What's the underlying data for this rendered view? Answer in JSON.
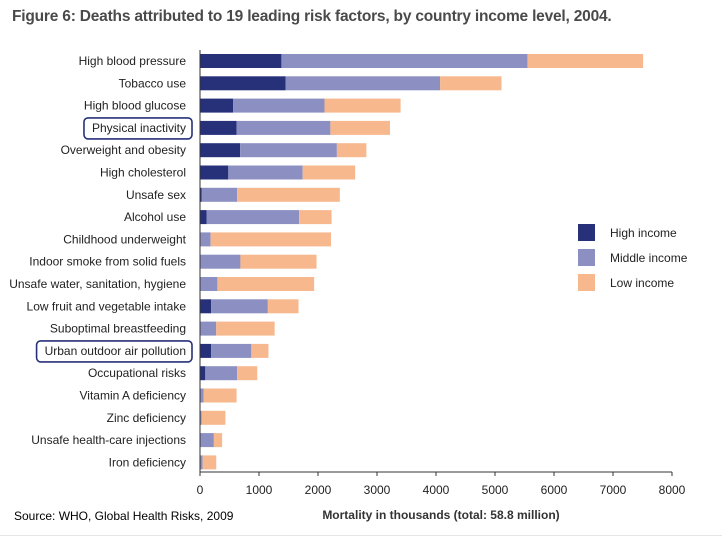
{
  "figure": {
    "title": "Figure 6: Deaths attributed to 19 leading risk factors, by country income level, 2004.",
    "source": "Source: WHO, Global Health Risks, 2009"
  },
  "colors": {
    "high_income": "#27317a",
    "middle_income": "#8c8fc2",
    "low_income": "#f7b88e",
    "highlight_box": "#27317a",
    "axis": "#333333",
    "text": "#222222"
  },
  "chart_data": {
    "type": "bar",
    "orientation": "horizontal",
    "stacked": true,
    "categories": [
      "High blood pressure",
      "Tobacco use",
      "High blood glucose",
      "Physical inactivity",
      "Overweight and obesity",
      "High cholesterol",
      "Unsafe sex",
      "Alcohol use",
      "Childhood underweight",
      "Indoor smoke from solid fuels",
      "Unsafe water, sanitation, hygiene",
      "Low fruit and vegetable intake",
      "Suboptimal breastfeeding",
      "Urban outdoor air pollution",
      "Occupational risks",
      "Vitamin A deficiency",
      "Zinc deficiency",
      "Unsafe health-care injections",
      "Iron deficiency"
    ],
    "highlighted": [
      "Physical inactivity",
      "Urban outdoor air pollution"
    ],
    "series": [
      {
        "name": "High income",
        "color_key": "high_income",
        "values": [
          1380,
          1450,
          560,
          620,
          680,
          480,
          30,
          110,
          10,
          5,
          5,
          190,
          5,
          190,
          90,
          0,
          0,
          5,
          5
        ]
      },
      {
        "name": "Middle income",
        "color_key": "middle_income",
        "values": [
          4170,
          2620,
          1550,
          1590,
          1640,
          1260,
          600,
          1570,
          170,
          680,
          290,
          960,
          270,
          680,
          540,
          60,
          30,
          230,
          40
        ]
      },
      {
        "name": "Low income",
        "color_key": "low_income",
        "values": [
          1960,
          1040,
          1290,
          1010,
          500,
          890,
          1740,
          550,
          2040,
          1290,
          1640,
          520,
          990,
          290,
          340,
          560,
          400,
          140,
          230
        ]
      }
    ],
    "xlabel": "Mortality in thousands (total: 58.8 million)",
    "xlim": [
      0,
      8000
    ],
    "xticks": [
      0,
      1000,
      2000,
      3000,
      4000,
      5000,
      6000,
      7000,
      8000
    ],
    "grid": false,
    "legend_position": "right"
  }
}
